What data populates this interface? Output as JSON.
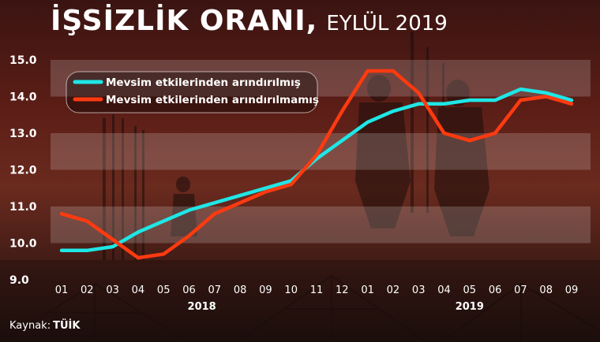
{
  "title": {
    "main": "İŞSİZLİK ORANI,",
    "sub": "EYLÜL 2019"
  },
  "source": {
    "label": "Kaynak:",
    "name": "TÜİK"
  },
  "colors": {
    "cyan": "#1fe6e6",
    "red": "#ff3a10",
    "text": "#ffffff"
  },
  "chart_data": {
    "type": "line",
    "x": [
      "01",
      "02",
      "03",
      "04",
      "05",
      "06",
      "07",
      "08",
      "09",
      "10",
      "11",
      "12",
      "01",
      "02",
      "03",
      "04",
      "05",
      "06",
      "07",
      "08",
      "09"
    ],
    "year_labels": [
      {
        "label": "2018",
        "index": 5.5
      },
      {
        "label": "2019",
        "index": 16
      }
    ],
    "yticks": [
      "9.0",
      "10.0",
      "11.0",
      "12.0",
      "13.0",
      "14.0",
      "15.0"
    ],
    "ylim": [
      9,
      15
    ],
    "grid": true,
    "legend": "top-left",
    "series": [
      {
        "name": "Mevsim etkilerinden arındırılmış",
        "color": "#1fe6e6",
        "values": [
          9.8,
          9.8,
          9.9,
          10.3,
          10.6,
          10.9,
          11.1,
          11.3,
          11.5,
          11.7,
          12.3,
          12.8,
          13.3,
          13.6,
          13.8,
          13.8,
          13.9,
          13.9,
          14.2,
          14.1,
          13.9
        ]
      },
      {
        "name": "Mevsim etkilerinden arındırılmamış",
        "color": "#ff3a10",
        "values": [
          10.8,
          10.6,
          10.1,
          9.6,
          9.7,
          10.2,
          10.8,
          11.1,
          11.4,
          11.6,
          12.4,
          13.6,
          14.7,
          14.7,
          14.1,
          13.0,
          12.8,
          13.0,
          13.9,
          14.0,
          13.8
        ]
      }
    ]
  }
}
